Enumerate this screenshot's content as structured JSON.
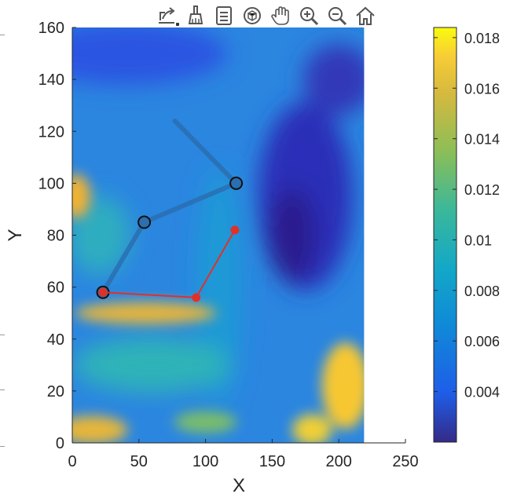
{
  "toolbar": {
    "tools": [
      {
        "name": "export-icon"
      },
      {
        "name": "brush-icon"
      },
      {
        "name": "legend-icon"
      },
      {
        "name": "rotate-3d-icon"
      },
      {
        "name": "pan-hand-icon"
      },
      {
        "name": "zoom-in-icon"
      },
      {
        "name": "zoom-out-icon"
      },
      {
        "name": "home-icon"
      }
    ]
  },
  "chart_data": {
    "type": "heatmap",
    "title": "",
    "xlabel": "X",
    "ylabel": "Y",
    "xlim": [
      0,
      250
    ],
    "ylim": [
      0,
      160
    ],
    "x_ticks": [
      0,
      50,
      100,
      150,
      200,
      250
    ],
    "y_ticks": [
      0,
      20,
      40,
      60,
      80,
      100,
      120,
      140,
      160
    ],
    "image_extent": {
      "x": [
        0,
        219
      ],
      "y": [
        0,
        160
      ]
    },
    "colormap": "parula",
    "colorbar": {
      "min": 0.002,
      "max": 0.0184,
      "ticks": [
        0.004,
        0.006,
        0.008,
        0.01,
        0.012,
        0.014,
        0.016,
        0.018
      ],
      "tick_labels": [
        "0.004",
        "0.006",
        "0.008",
        "0.01",
        "0.012",
        "0.014",
        "0.016",
        "0.018"
      ]
    },
    "series": [
      {
        "style": "thick-blue-line-with-circle-markers",
        "color": "#2a6fb0",
        "x": [
          77,
          123,
          54,
          23
        ],
        "y": [
          124,
          100,
          85,
          58
        ],
        "markers": [
          [
            123,
            100
          ],
          [
            54,
            85
          ],
          [
            23,
            58
          ]
        ]
      },
      {
        "style": "thin-red-line-with-dots",
        "color": "#e0302a",
        "x": [
          122,
          93,
          23
        ],
        "y": [
          82,
          56,
          58
        ]
      }
    ]
  }
}
